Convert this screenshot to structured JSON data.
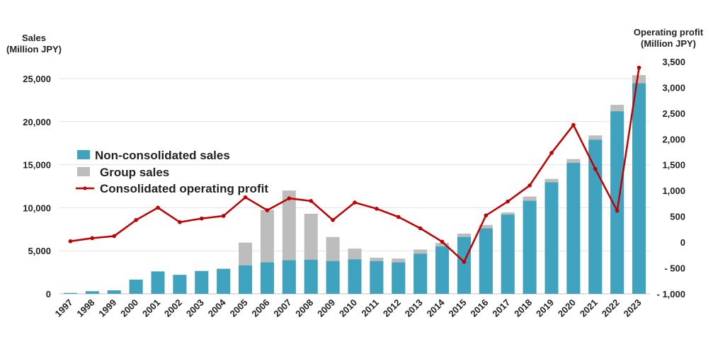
{
  "chart_data": {
    "type": "bar",
    "categories": [
      "1997",
      "1998",
      "1999",
      "2000",
      "2001",
      "2002",
      "2003",
      "2004",
      "2005",
      "2006",
      "2007",
      "2008",
      "2009",
      "2010",
      "2011",
      "2012",
      "2013",
      "2014",
      "2015",
      "2016",
      "2017",
      "2018",
      "2019",
      "2020",
      "2021",
      "2022",
      "2023"
    ],
    "series": [
      {
        "name": "Non-consolidated sales",
        "type": "bar",
        "axis": "left",
        "values": [
          100,
          300,
          400,
          1650,
          2600,
          2200,
          2650,
          2900,
          3300,
          3650,
          3900,
          3950,
          3800,
          4000,
          3800,
          3650,
          4650,
          5500,
          6600,
          7600,
          9200,
          10800,
          12950,
          15200,
          17900,
          21200,
          24450
        ]
      },
      {
        "name": "Group sales",
        "type": "bar",
        "axis": "left",
        "values": [
          100,
          300,
          400,
          1650,
          2600,
          2200,
          2650,
          2900,
          5950,
          9750,
          12000,
          9300,
          6600,
          5250,
          4200,
          4100,
          5150,
          5900,
          7000,
          8000,
          9450,
          11300,
          13350,
          15650,
          18400,
          21950,
          25400
        ]
      },
      {
        "name": "Consolidated operating profit",
        "type": "line",
        "axis": "right",
        "values": [
          20,
          80,
          120,
          430,
          670,
          390,
          460,
          510,
          870,
          620,
          850,
          800,
          430,
          770,
          650,
          490,
          270,
          10,
          -380,
          520,
          790,
          1100,
          1730,
          2270,
          1420,
          610,
          3380
        ]
      }
    ],
    "left_axis": {
      "title_line1": "Sales",
      "title_line2": "(Million JPY)",
      "ylim": [
        0,
        25000
      ],
      "ticks": [
        0,
        5000,
        10000,
        15000,
        20000,
        25000
      ],
      "tick_labels": [
        "0",
        "5,000",
        "10,000",
        "15,000",
        "20,000",
        "25,000"
      ]
    },
    "right_axis": {
      "title_line1": "Operating profit",
      "title_line2": "(Million JPY)",
      "ylim": [
        -1000,
        3500
      ],
      "ticks": [
        -1000,
        -500,
        0,
        500,
        1000,
        1500,
        2000,
        2500,
        3000,
        3500
      ],
      "tick_labels": [
        "- 1,000",
        "- 500",
        "0",
        "500",
        "1,000",
        "1,500",
        "2,000",
        "2,500",
        "3,000",
        "3,500"
      ]
    },
    "grid": true,
    "legend_position": "left-middle",
    "colors": {
      "non_consolidated": "#3fa3bf",
      "group": "#bdbdbd",
      "profit": "#c00000",
      "grid": "#e3e3e3"
    }
  }
}
